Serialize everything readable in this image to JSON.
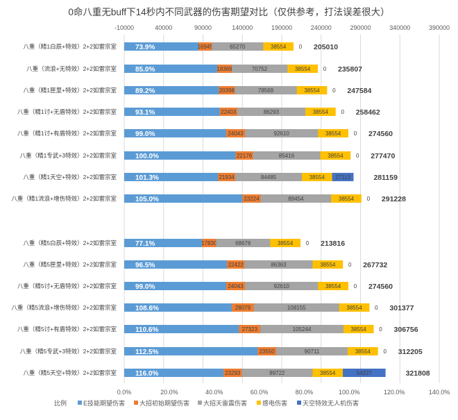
{
  "chart_data": {
    "type": "bar",
    "stacked": true,
    "orientation": "horizontal",
    "title": "0命八重无buff下14秒内不同武器的伤害期望对比（仅供参考，打法误差很大）",
    "top_axis": {
      "min": -10000,
      "max": 390000,
      "ticks": [
        "-10000",
        "40000",
        "90000",
        "140000",
        "190000",
        "240000",
        "290000",
        "340000",
        "390000"
      ]
    },
    "bottom_axis": {
      "min": 0,
      "max": 140,
      "ticks": [
        "0.0%",
        "20.0%",
        "40.0%",
        "60.0%",
        "80.0%",
        "100.0%",
        "120.0%",
        "140.0%"
      ]
    },
    "grid": true,
    "legend_position": "bottom",
    "colors": {
      "ratio": "#5b9bd5",
      "e_skill": "#5b9bd5",
      "burst_initial": "#ed7d31",
      "burst_thunder": "#a5a5a5",
      "electro_charged": "#ffc000",
      "drone": "#4472c4"
    },
    "legend": [
      "比例",
      "E技能期望伤害",
      "大招初始期望伤害",
      "大招天雷震伤害",
      "感电伤害",
      "天空特效无人机伤害"
    ],
    "group1": [
      {
        "category": "八重（精1白辰+特效）2+2如雷宗室",
        "ratio": 73.9,
        "ratio_label": "73.9%",
        "e_skill": 84242,
        "burst_initial": 16945,
        "burst_thunder": 65270,
        "electro_charged": 38554,
        "drone": 0,
        "total": 205010
      },
      {
        "category": "八重（流浪+无特效）2+2如雷宗室",
        "ratio": 85.0,
        "ratio_label": "85.0%",
        "e_skill": 108132,
        "burst_initial": 18369,
        "burst_thunder": 70752,
        "electro_charged": 38554,
        "drone": 0,
        "total": 235807
      },
      {
        "category": "八重（精1匣里+特效）2+2如雷宗室",
        "ratio": 89.2,
        "ratio_label": "89.2%",
        "e_skill": 110063,
        "burst_initial": 20398,
        "burst_thunder": 78569,
        "electro_charged": 38554,
        "drone": 0,
        "total": 247584
      },
      {
        "category": "八重（精1讨+无盾特效）2+2如雷宗室",
        "ratio": 93.1,
        "ratio_label": "93.1%",
        "e_skill": 111212,
        "burst_initial": 22403,
        "burst_thunder": 86293,
        "electro_charged": 38554,
        "drone": 0,
        "total": 258462
      },
      {
        "category": "八重（精1讨+有盾特效）2+2如雷宗室",
        "ratio": 99.0,
        "ratio_label": "99.0%",
        "e_skill": 119353,
        "burst_initial": 24043,
        "burst_thunder": 92610,
        "electro_charged": 38554,
        "drone": 0,
        "total": 274560
      },
      {
        "category": "八重（精1专武+3特效）2+2如雷宗室",
        "ratio": 100.0,
        "ratio_label": "100.0%",
        "e_skill": 131324,
        "burst_initial": 22176,
        "burst_thunder": 85416,
        "electro_charged": 38554,
        "drone": 0,
        "total": 277470
      },
      {
        "category": "八重（精1天空+特效）2+2如雷宗室",
        "ratio": 101.3,
        "ratio_label": "101.3%",
        "e_skill": 109073,
        "burst_initial": 21934,
        "burst_thunder": 84485,
        "electro_charged": 38554,
        "drone": 27113,
        "total": 281159
      },
      {
        "category": "八重（精1流浪+增伤特效）2+2如雷宗室",
        "ratio": 105.0,
        "ratio_label": "105.0%",
        "e_skill": 139997,
        "burst_initial": 23224,
        "burst_thunder": 89454,
        "electro_charged": 38554,
        "drone": 0,
        "total": 291228
      }
    ],
    "group2": [
      {
        "category": "八重（精5白辰+特效）2+2如雷宗室",
        "ratio": 77.1,
        "ratio_label": "77.1%",
        "e_skill": 88756,
        "burst_initial": 17830,
        "burst_thunder": 68676,
        "electro_charged": 38554,
        "drone": 0,
        "total": 213816
      },
      {
        "category": "八重（精5匣里+特效）2+2如雷宗室",
        "ratio": 96.5,
        "ratio_label": "96.5%",
        "e_skill": 120393,
        "burst_initial": 22422,
        "burst_thunder": 86363,
        "electro_charged": 38554,
        "drone": 0,
        "total": 267732
      },
      {
        "category": "八重（精5讨+无盾特效）2+2如雷宗室",
        "ratio": 99.0,
        "ratio_label": "99.0%",
        "e_skill": 119353,
        "burst_initial": 24043,
        "burst_thunder": 92610,
        "electro_charged": 38554,
        "drone": 0,
        "total": 274560
      },
      {
        "category": "八重（精5流浪+增伤特效）2+2如雷宗室",
        "ratio": 108.6,
        "ratio_label": "108.6%",
        "e_skill": 126589,
        "burst_initial": 28079,
        "burst_thunder": 108155,
        "electro_charged": 38554,
        "drone": 0,
        "total": 301377
      },
      {
        "category": "八重（精5讨+有盾特效）2+2如雷宗室",
        "ratio": 110.6,
        "ratio_label": "110.6%",
        "e_skill": 135635,
        "burst_initial": 27323,
        "burst_thunder": 105244,
        "electro_charged": 38554,
        "drone": 0,
        "total": 306756
      },
      {
        "category": "八重（精5专武+3特效）2+2如雷宗室",
        "ratio": 112.5,
        "ratio_label": "112.5%",
        "e_skill": 159390,
        "burst_initial": 23550,
        "burst_thunder": 90711,
        "electro_charged": 38554,
        "drone": 0,
        "total": 312205
      },
      {
        "category": "八重（精5天空+特效）2+2如雷宗室",
        "ratio": 116.0,
        "ratio_label": "116.0%",
        "e_skill": 116013,
        "burst_initial": 23293,
        "burst_thunder": 89722,
        "electro_charged": 38554,
        "drone": 54227,
        "total": 321808
      }
    ]
  }
}
